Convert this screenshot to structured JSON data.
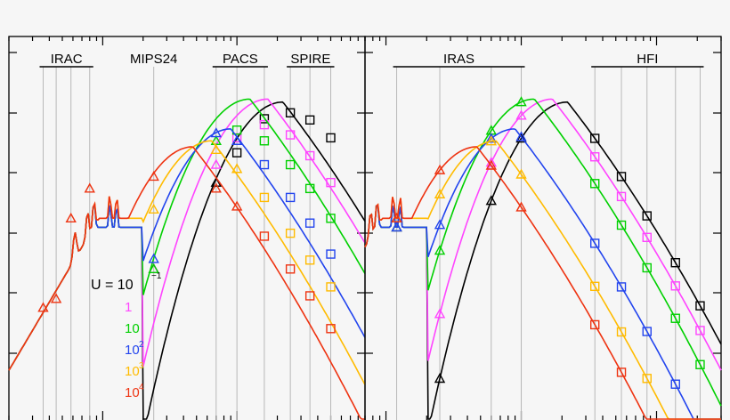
{
  "chart_data": [
    {
      "type": "line",
      "panel": "left",
      "bands": [
        {
          "label": "IRAC",
          "lines": [
            3.6,
            4.5,
            5.8,
            8.0
          ]
        },
        {
          "label": "MIPS24",
          "lines": [
            24
          ]
        },
        {
          "label": "PACS",
          "lines": [
            70,
            100,
            160
          ]
        },
        {
          "label": "SPIRE",
          "lines": [
            250,
            350,
            500
          ]
        }
      ],
      "xscale": "log",
      "yscale": "log",
      "series": [
        {
          "name": "U = 10⁻¹",
          "color": "#000000",
          "peak_um": 220,
          "points": [
            [
              24,
              -0.9
            ],
            [
              70,
              0.55
            ],
            [
              100,
              1.05
            ],
            [
              160,
              1.62
            ],
            [
              250,
              1.72
            ],
            [
              350,
              1.6
            ],
            [
              500,
              1.3
            ]
          ]
        },
        {
          "name": "1",
          "color": "#ff44ff",
          "peak_um": 170,
          "points": [
            [
              24,
              -0.9
            ],
            [
              70,
              0.85
            ],
            [
              100,
              1.3
            ],
            [
              160,
              1.52
            ],
            [
              250,
              1.35
            ],
            [
              350,
              1.0
            ],
            [
              500,
              0.55
            ]
          ]
        },
        {
          "name": "10",
          "color": "#00d000",
          "peak_um": 125,
          "points": [
            [
              24,
              -0.9
            ],
            [
              70,
              1.25
            ],
            [
              100,
              1.43
            ],
            [
              160,
              1.25
            ],
            [
              250,
              0.85
            ],
            [
              350,
              0.45
            ],
            [
              500,
              -0.05
            ]
          ]
        },
        {
          "name": "10²",
          "color": "#2244ee",
          "peak_um": 90,
          "points": [
            [
              24,
              -0.73
            ],
            [
              70,
              1.38
            ],
            [
              100,
              1.25
            ],
            [
              160,
              0.85
            ],
            [
              250,
              0.3
            ],
            [
              350,
              -0.13
            ],
            [
              500,
              -0.65
            ]
          ]
        },
        {
          "name": "10³",
          "color": "#ffbb00",
          "peak_um": 65,
          "points": [
            [
              24,
              0.1
            ],
            [
              70,
              1.1
            ],
            [
              100,
              0.78
            ],
            [
              160,
              0.3
            ],
            [
              250,
              -0.3
            ],
            [
              350,
              -0.75
            ],
            [
              500,
              -1.2
            ]
          ]
        },
        {
          "name": "10⁴",
          "color": "#ee3311",
          "peak_um": 47,
          "points": [
            [
              24,
              0.65
            ],
            [
              70,
              0.45
            ],
            [
              100,
              0.15
            ],
            [
              160,
              -0.35
            ],
            [
              250,
              -0.9
            ],
            [
              350,
              -1.35
            ],
            [
              500,
              -1.9
            ]
          ]
        }
      ]
    },
    {
      "type": "line",
      "panel": "right",
      "bands": [
        {
          "label": "IRAS",
          "lines": [
            12,
            25,
            60,
            100
          ]
        },
        {
          "label": "HFI",
          "lines": [
            350,
            550,
            850,
            1380,
            2100
          ]
        }
      ],
      "xscale": "log",
      "yscale": "log"
    }
  ],
  "legend": {
    "prefix": "U  =  10",
    "exponent": "−1",
    "items": [
      {
        "base": "1",
        "exp": "",
        "color": "#ff44ff"
      },
      {
        "base": "10",
        "exp": "",
        "color": "#00d000"
      },
      {
        "base": "10",
        "exp": "2",
        "color": "#2244ee"
      },
      {
        "base": "10",
        "exp": "3",
        "color": "#ffbb00"
      },
      {
        "base": "10",
        "exp": "4",
        "color": "#ee3311"
      }
    ]
  },
  "colors": {
    "background": "#f6f6f6",
    "axes": "#000000",
    "bandlines": "#b8b8b8"
  }
}
